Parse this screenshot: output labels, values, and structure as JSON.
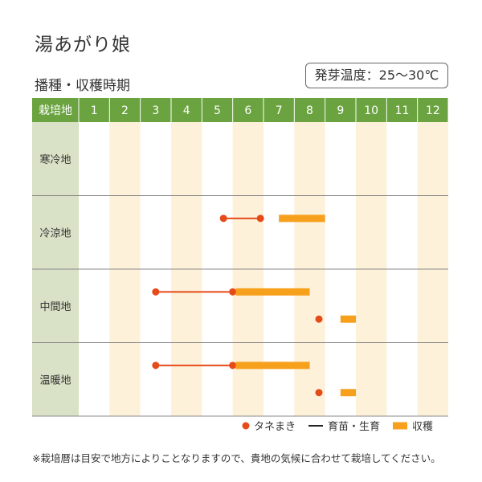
{
  "title": "湯あがり娘",
  "subtitle": "播種・収穫時期",
  "temperature": "発芽温度：25～30℃",
  "note": "※栽培暦は目安で地方によりことなりますので、貴地の気候に合わせて栽培してください。",
  "colors": {
    "header": "#6aa33f",
    "label_column": "#d9e1c6",
    "shade_column": "#fdf1da",
    "sow": "#e64a19",
    "harvest": "#f7a01c",
    "grow_line": "#e64a19",
    "divider": "#8a8a8a"
  },
  "chart_data": {
    "type": "gantt",
    "header_label": "栽培地",
    "months": [
      "1",
      "2",
      "3",
      "4",
      "5",
      "6",
      "7",
      "8",
      "9",
      "10",
      "11",
      "12"
    ],
    "regions": [
      {
        "name": "寒冷地",
        "rows": []
      },
      {
        "name": "冷涼地",
        "rows": [
          {
            "sow": [
              5.2,
              6.4
            ],
            "harvest": [
              7.0,
              8.5
            ]
          }
        ]
      },
      {
        "name": "中間地",
        "rows": [
          {
            "sow": [
              3.0,
              5.5
            ],
            "harvest": [
              5.6,
              8.0
            ]
          },
          {
            "sow": [
              8.3,
              8.3
            ],
            "harvest": [
              9.0,
              9.5
            ]
          }
        ]
      },
      {
        "name": "温暖地",
        "rows": [
          {
            "sow": [
              3.0,
              5.5
            ],
            "harvest": [
              5.6,
              8.0
            ]
          },
          {
            "sow": [
              8.3,
              8.3
            ],
            "harvest": [
              9.0,
              9.5
            ]
          }
        ]
      }
    ],
    "legend": [
      {
        "key": "sow",
        "label": "タネまき"
      },
      {
        "key": "grow",
        "label": "育苗・生育"
      },
      {
        "key": "harvest",
        "label": "収穫"
      }
    ]
  }
}
